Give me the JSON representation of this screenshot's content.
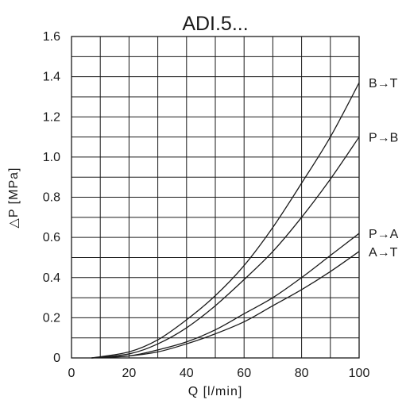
{
  "chart_data": {
    "type": "line",
    "title": "ADI.5...",
    "xlabel": "Q [l/min]",
    "ylabel": "△P [MPa]",
    "xlim": [
      0,
      100
    ],
    "ylim": [
      0,
      1.6
    ],
    "x_ticks": [
      "0",
      "20",
      "40",
      "60",
      "80",
      "100"
    ],
    "y_ticks": [
      "0",
      "0.2",
      "0.4",
      "0.6",
      "0.8",
      "1.0",
      "1.2",
      "1.4",
      "1.6"
    ],
    "grid": true,
    "x_minor_step": 10,
    "y_minor_step": 0.1,
    "legend": "labels at right end of each curve",
    "series": [
      {
        "name": "B→T",
        "x": [
          7,
          20,
          30,
          40,
          50,
          60,
          70,
          80,
          90,
          100
        ],
        "y": [
          0,
          0.03,
          0.09,
          0.19,
          0.31,
          0.46,
          0.65,
          0.87,
          1.1,
          1.37
        ]
      },
      {
        "name": "P→B",
        "x": [
          7,
          20,
          30,
          40,
          50,
          60,
          70,
          80,
          90,
          100
        ],
        "y": [
          0,
          0.02,
          0.07,
          0.15,
          0.26,
          0.39,
          0.53,
          0.7,
          0.89,
          1.1
        ]
      },
      {
        "name": "P→A",
        "x": [
          7,
          20,
          30,
          40,
          50,
          60,
          70,
          80,
          90,
          100
        ],
        "y": [
          0,
          0.01,
          0.04,
          0.08,
          0.14,
          0.22,
          0.3,
          0.4,
          0.51,
          0.62
        ]
      },
      {
        "name": "A→T",
        "x": [
          7,
          20,
          30,
          40,
          50,
          60,
          70,
          80,
          90,
          100
        ],
        "y": [
          0,
          0.01,
          0.03,
          0.07,
          0.12,
          0.18,
          0.26,
          0.34,
          0.43,
          0.53
        ]
      }
    ]
  }
}
